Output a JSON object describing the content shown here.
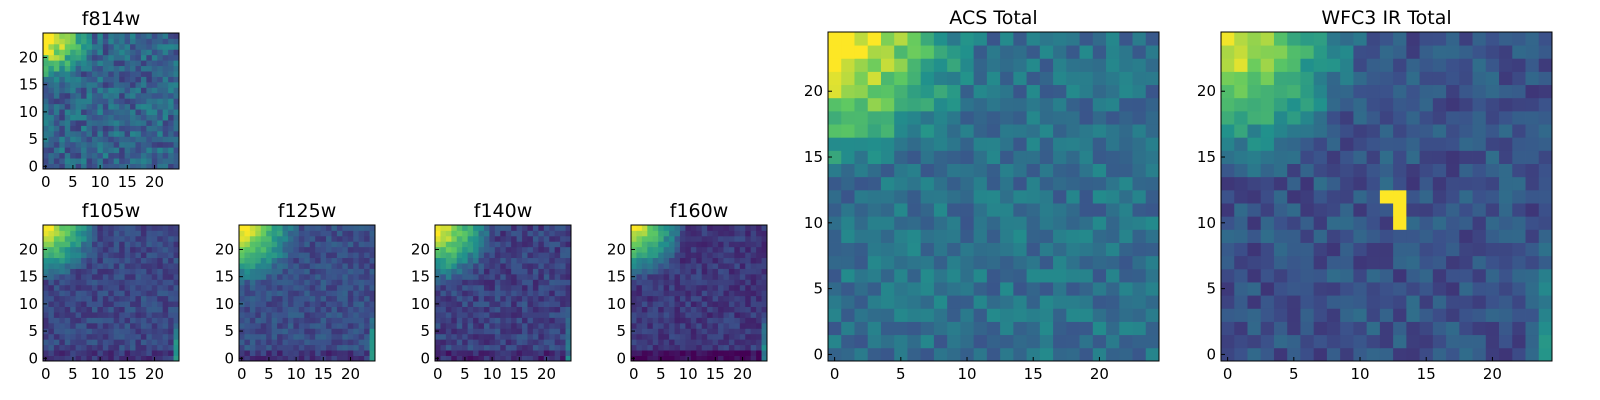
{
  "chart_data": [
    {
      "type": "heatmap",
      "title": "f814w",
      "grid_size": 25,
      "xticks": [
        0,
        5,
        10,
        15,
        20
      ],
      "yticks": [
        0,
        5,
        10,
        15,
        20
      ],
      "xlim": [
        -0.5,
        24.5
      ],
      "ylim": [
        -0.5,
        24.5
      ],
      "colormap": [
        "#440154",
        "#3b528b",
        "#21918c",
        "#5ec962",
        "#fde725"
      ],
      "texture": {
        "corner_strength": 0.85,
        "corner_radius": 9,
        "base": 0.32,
        "noise": 0.28,
        "right_edge_boost": 0,
        "bottom_dark": 0,
        "seed": 11
      },
      "features": []
    },
    {
      "type": "heatmap",
      "title": "f105w",
      "grid_size": 25,
      "xticks": [
        0,
        5,
        10,
        15,
        20
      ],
      "yticks": [
        0,
        5,
        10,
        15,
        20
      ],
      "xlim": [
        -0.5,
        24.5
      ],
      "ylim": [
        -0.5,
        24.5
      ],
      "colormap": [
        "#440154",
        "#3b528b",
        "#21918c",
        "#5ec962",
        "#fde725"
      ],
      "texture": {
        "corner_strength": 0.8,
        "corner_radius": 10,
        "base": 0.22,
        "noise": 0.16,
        "right_edge_boost": 0.35,
        "bottom_dark": 0.06,
        "seed": 23
      },
      "features": []
    },
    {
      "type": "heatmap",
      "title": "f125w",
      "grid_size": 25,
      "xticks": [
        0,
        5,
        10,
        15,
        20
      ],
      "yticks": [
        0,
        5,
        10,
        15,
        20
      ],
      "xlim": [
        -0.5,
        24.5
      ],
      "ylim": [
        -0.5,
        24.5
      ],
      "colormap": [
        "#440154",
        "#3b528b",
        "#21918c",
        "#5ec962",
        "#fde725"
      ],
      "texture": {
        "corner_strength": 0.8,
        "corner_radius": 11,
        "base": 0.24,
        "noise": 0.16,
        "right_edge_boost": 0.4,
        "bottom_dark": 0.08,
        "seed": 37
      },
      "features": []
    },
    {
      "type": "heatmap",
      "title": "f140w",
      "grid_size": 25,
      "xticks": [
        0,
        5,
        10,
        15,
        20
      ],
      "yticks": [
        0,
        5,
        10,
        15,
        20
      ],
      "xlim": [
        -0.5,
        24.5
      ],
      "ylim": [
        -0.5,
        24.5
      ],
      "colormap": [
        "#440154",
        "#3b528b",
        "#21918c",
        "#5ec962",
        "#fde725"
      ],
      "texture": {
        "corner_strength": 0.85,
        "corner_radius": 11,
        "base": 0.2,
        "noise": 0.18,
        "right_edge_boost": 0.3,
        "bottom_dark": 0.08,
        "seed": 41
      },
      "features": []
    },
    {
      "type": "heatmap",
      "title": "f160w",
      "grid_size": 25,
      "xticks": [
        0,
        5,
        10,
        15,
        20
      ],
      "yticks": [
        0,
        5,
        10,
        15,
        20
      ],
      "xlim": [
        -0.5,
        24.5
      ],
      "ylim": [
        -0.5,
        24.5
      ],
      "colormap": [
        "#440154",
        "#3b528b",
        "#21918c",
        "#5ec962",
        "#fde725"
      ],
      "texture": {
        "corner_strength": 0.85,
        "corner_radius": 10,
        "base": 0.17,
        "noise": 0.15,
        "right_edge_boost": 0.4,
        "bottom_dark": 0.12,
        "seed": 53
      },
      "features": []
    },
    {
      "type": "heatmap",
      "title": "ACS Total",
      "grid_size": 25,
      "xticks": [
        0,
        5,
        10,
        15,
        20
      ],
      "yticks": [
        0,
        5,
        10,
        15,
        20
      ],
      "xlim": [
        -0.5,
        24.5
      ],
      "ylim": [
        -0.5,
        24.5
      ],
      "colormap": [
        "#440154",
        "#3b528b",
        "#21918c",
        "#5ec962",
        "#fde725"
      ],
      "texture": {
        "corner_strength": 0.75,
        "corner_radius": 11,
        "base": 0.37,
        "noise": 0.22,
        "right_edge_boost": 0,
        "bottom_dark": 0,
        "seed": 67
      },
      "features": []
    },
    {
      "type": "heatmap",
      "title": "WFC3 IR Total",
      "grid_size": 25,
      "xticks": [
        0,
        5,
        10,
        15,
        20
      ],
      "yticks": [
        0,
        5,
        10,
        15,
        20
      ],
      "xlim": [
        -0.5,
        24.5
      ],
      "ylim": [
        -0.5,
        24.5
      ],
      "colormap": [
        "#440154",
        "#3b528b",
        "#21918c",
        "#5ec962",
        "#fde725"
      ],
      "texture": {
        "corner_strength": 0.75,
        "corner_radius": 11,
        "base": 0.26,
        "noise": 0.2,
        "right_edge_boost": 0.3,
        "bottom_dark": 0,
        "seed": 79
      },
      "features": [
        {
          "x": 12,
          "y": 12,
          "value": 1.0
        },
        {
          "x": 13,
          "y": 12,
          "value": 1.0
        },
        {
          "x": 13,
          "y": 11,
          "value": 1.0
        },
        {
          "x": 13,
          "y": 10,
          "value": 1.0
        }
      ]
    }
  ]
}
